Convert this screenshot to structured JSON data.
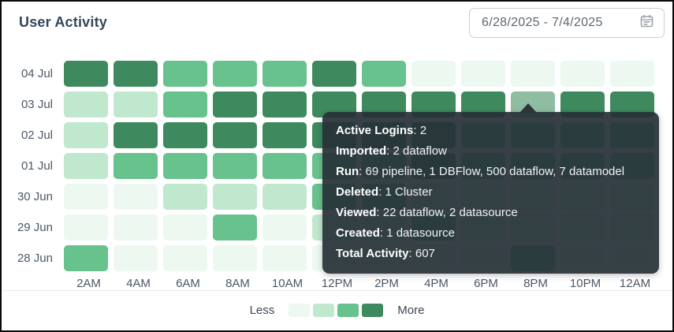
{
  "header": {
    "title": "User Activity",
    "date_picker": {
      "value": "6/28/2025 - 7/4/2025"
    }
  },
  "chart_data": {
    "type": "heatmap",
    "title": "User Activity",
    "rows": [
      "04 Jul",
      "03 Jul",
      "02 Jul",
      "01 Jul",
      "30 Jun",
      "29 Jun",
      "28 Jun"
    ],
    "columns": [
      "2AM",
      "4AM",
      "6AM",
      "8AM",
      "10AM",
      "12PM",
      "2PM",
      "4PM",
      "6PM",
      "8PM",
      "10PM",
      "12AM"
    ],
    "levels": [
      [
        3,
        3,
        2,
        2,
        2,
        3,
        2,
        0,
        0,
        0,
        0,
        0
      ],
      [
        1,
        1,
        2,
        3,
        3,
        3,
        3,
        3,
        3,
        3,
        3,
        3
      ],
      [
        1,
        3,
        3,
        3,
        3,
        3,
        3,
        3,
        2,
        2,
        2,
        2
      ],
      [
        1,
        2,
        2,
        2,
        2,
        2,
        2,
        3,
        2,
        2,
        2,
        2
      ],
      [
        0,
        0,
        1,
        1,
        1,
        2,
        2,
        1,
        1,
        1,
        1,
        1
      ],
      [
        0,
        0,
        0,
        2,
        0,
        1,
        1,
        2,
        1,
        1,
        1,
        1
      ],
      [
        2,
        0,
        0,
        0,
        0,
        0,
        0,
        0,
        0,
        2,
        0,
        0
      ]
    ],
    "palette": [
      "#edf8f1",
      "#c0e8cf",
      "#68c28d",
      "#3e8a5e"
    ],
    "hovered": {
      "row_index": 1,
      "col_index": 9,
      "color": "#8fbda2"
    },
    "legend": {
      "less_label": "Less",
      "more_label": "More",
      "swatches": [
        "#edf8f1",
        "#c0e8cf",
        "#68c28d",
        "#3e8a5e"
      ]
    },
    "axis": {
      "grid": "off",
      "legend_position": "bottom-center"
    }
  },
  "tooltip": {
    "anchor": {
      "row": "03 Jul",
      "column": "8PM"
    },
    "entries": [
      {
        "label": "Active Logins",
        "value": "2"
      },
      {
        "label": "Imported",
        "value": "2 dataflow"
      },
      {
        "label": "Run",
        "value": "69 pipeline, 1 DBFlow, 500 dataflow, 7 datamodel"
      },
      {
        "label": "Deleted",
        "value": "1 Cluster"
      },
      {
        "label": "Viewed",
        "value": "22 dataflow, 2 datasource"
      },
      {
        "label": "Created",
        "value": "1 datasource"
      },
      {
        "label": "Total Activity",
        "value": "607"
      }
    ]
  },
  "colors": {
    "title_text": "#33475b",
    "axis_text": "#4d5866",
    "tooltip_bg": "#273138",
    "border": "#0a0a0a",
    "datebox_border": "#c9ced4"
  }
}
